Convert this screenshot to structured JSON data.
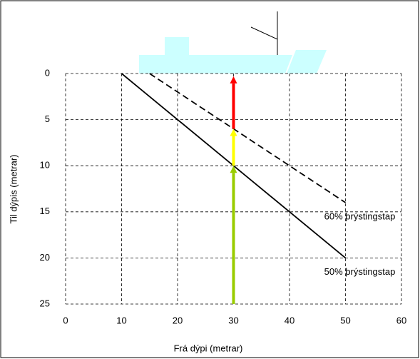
{
  "chart_data": {
    "type": "line",
    "xlabel": "Frá dýpi (metrar)",
    "ylabel": "Til dýpis (metrar)",
    "xlim": [
      0,
      60
    ],
    "xticks": [
      0,
      10,
      20,
      30,
      40,
      50,
      60
    ],
    "ylim": [
      0,
      25
    ],
    "yticks": [
      0,
      5,
      10,
      15,
      20,
      25
    ],
    "y_reversed": true,
    "grid": true,
    "series": [
      {
        "name": "60% þrýstingstap",
        "color": "#000000",
        "line_style": "dashed",
        "x": [
          15,
          50
        ],
        "values": [
          0,
          14
        ]
      },
      {
        "name": "50% þrýstingstap",
        "color": "#000000",
        "line_style": "solid",
        "x": [
          10,
          50
        ],
        "values": [
          0,
          20
        ]
      }
    ],
    "arrows": [
      {
        "x": 30,
        "from": 25,
        "to": 10,
        "color": "#99cc00"
      },
      {
        "x": 30,
        "from": 10,
        "to": 6,
        "color": "#ffff00"
      },
      {
        "x": 30,
        "from": 6,
        "to": 0.3,
        "color": "#ff0000"
      }
    ]
  }
}
